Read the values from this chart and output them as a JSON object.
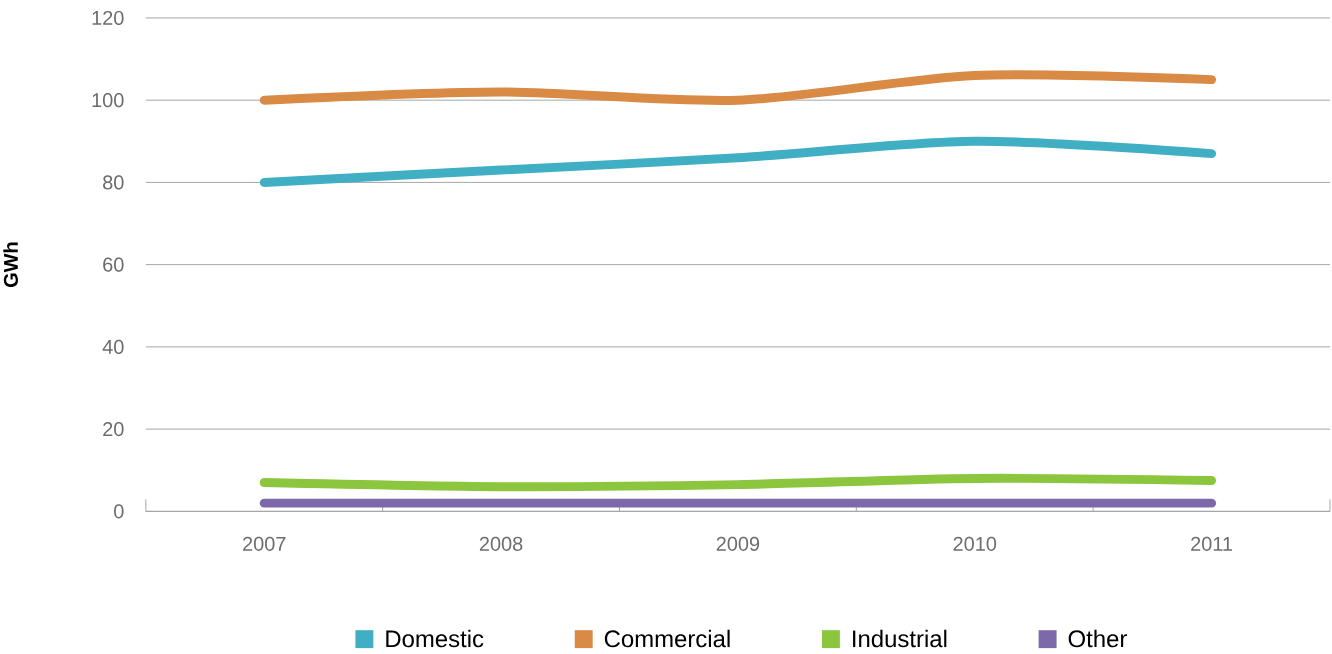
{
  "chart_data": {
    "type": "line",
    "ylabel": "GWh",
    "categories": [
      "2007",
      "2008",
      "2009",
      "2010",
      "2011"
    ],
    "series": [
      {
        "name": "Domestic",
        "color": "#41afc3",
        "values": [
          80,
          83,
          86,
          90,
          87
        ]
      },
      {
        "name": "Commercial",
        "color": "#d98a45",
        "values": [
          100,
          102,
          100,
          106,
          105
        ]
      },
      {
        "name": "Industrial",
        "color": "#8cc63f",
        "values": [
          7,
          6,
          6.5,
          8,
          7.5
        ]
      },
      {
        "name": "Other",
        "color": "#7d68aa",
        "values": [
          2,
          2,
          2,
          2,
          2
        ]
      }
    ],
    "ylim": [
      0,
      120
    ],
    "yticks": [
      0,
      20,
      40,
      60,
      80,
      100,
      120
    ],
    "grid": "y",
    "legend": "bottom",
    "line_style": "solid"
  }
}
